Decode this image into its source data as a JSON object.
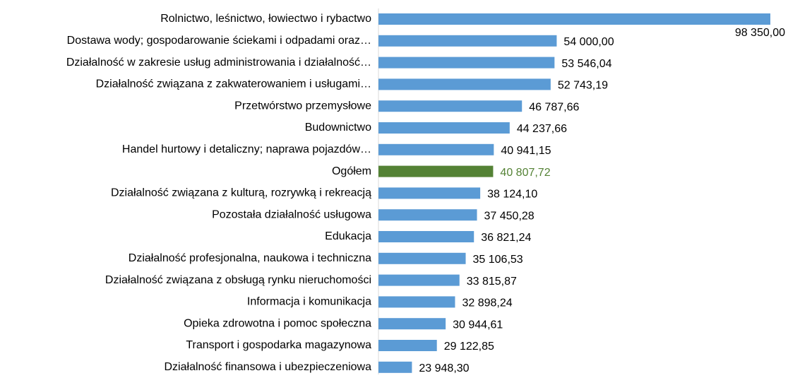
{
  "chart_data": {
    "type": "bar",
    "orientation": "horizontal",
    "categories": [
      "Rolnictwo, leśnictwo, łowiectwo i rybactwo",
      "Dostawa wody; gospodarowanie ściekami i odpadami oraz…",
      "Działalność w zakresie usług administrowania i działalność…",
      "Działalność związana z zakwaterowaniem i usługami…",
      "Przetwórstwo przemysłowe",
      "Budownictwo",
      "Handel hurtowy i detaliczny; naprawa pojazdów…",
      "Ogółem",
      "Działalność związana z kulturą, rozrywką i rekreacją",
      "Pozostała działalność usługowa ",
      "Edukacja",
      "Działalność profesjonalna, naukowa i techniczna",
      "Działalność związana z obsługą rynku nieruchomości",
      "Informacja i komunikacja",
      "Opieka zdrowotna i pomoc społeczna",
      "Transport i gospodarka magazynowa",
      "Działalność finansowa i ubezpieczeniowa"
    ],
    "values": [
      98350,
      54000,
      53546.04,
      52743.19,
      46787.66,
      44237.66,
      40941.15,
      40807.72,
      38124.1,
      37450.28,
      36821.24,
      35106.53,
      33815.87,
      32898.24,
      30944.61,
      29122.85,
      23948.3
    ],
    "value_labels": [
      "98 350,00",
      "54 000,00",
      "53 546,04",
      "52 743,19",
      "46 787,66",
      "44 237,66",
      "40 941,15",
      "40 807,72",
      "38 124,10",
      "37 450,28",
      "36 821,24",
      "35 106,53",
      "33 815,87",
      "32 898,24",
      "30 944,61",
      "29 122,85",
      "23 948,30"
    ],
    "colors": [
      "#5b9bd5",
      "#5b9bd5",
      "#5b9bd5",
      "#5b9bd5",
      "#5b9bd5",
      "#5b9bd5",
      "#5b9bd5",
      "#548235",
      "#5b9bd5",
      "#5b9bd5",
      "#5b9bd5",
      "#5b9bd5",
      "#5b9bd5",
      "#5b9bd5",
      "#5b9bd5",
      "#5b9bd5",
      "#5b9bd5"
    ],
    "xlim": [
      17000,
      98350
    ]
  }
}
